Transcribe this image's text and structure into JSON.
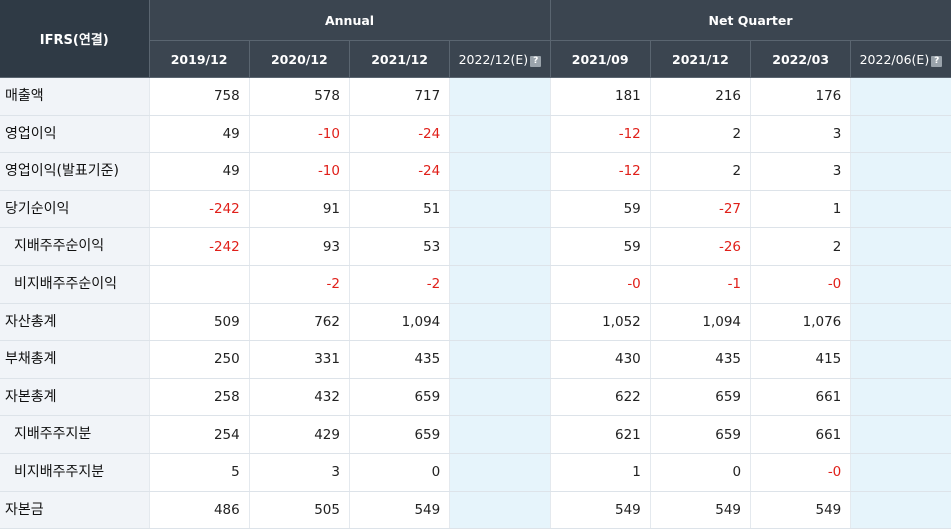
{
  "header": {
    "corner": "IFRS(연결)",
    "annual": "Annual",
    "quarter": "Net Quarter",
    "periods": [
      "2019/12",
      "2020/12",
      "2021/12",
      "2022/12(E)",
      "2021/09",
      "2021/12",
      "2022/03",
      "2022/06(E)"
    ],
    "estimate_icon": "?"
  },
  "rows": [
    {
      "label": "매출액",
      "values": [
        "758",
        "578",
        "717",
        "",
        "181",
        "216",
        "176",
        ""
      ]
    },
    {
      "label": "영업이익",
      "values": [
        "49",
        "-10",
        "-24",
        "",
        "-12",
        "2",
        "3",
        ""
      ]
    },
    {
      "label": "영업이익(발표기준)",
      "values": [
        "49",
        "-10",
        "-24",
        "",
        "-12",
        "2",
        "3",
        ""
      ]
    },
    {
      "label": "당기순이익",
      "values": [
        "-242",
        "91",
        "51",
        "",
        "59",
        "-27",
        "1",
        ""
      ]
    },
    {
      "label": "지배주주순이익",
      "values": [
        "-242",
        "93",
        "53",
        "",
        "59",
        "-26",
        "2",
        ""
      ]
    },
    {
      "label": "비지배주주순이익",
      "values": [
        "",
        "-2",
        "-2",
        "",
        "-0",
        "-1",
        "-0",
        ""
      ]
    },
    {
      "label": "자산총계",
      "values": [
        "509",
        "762",
        "1,094",
        "",
        "1,052",
        "1,094",
        "1,076",
        ""
      ]
    },
    {
      "label": "부채총계",
      "values": [
        "250",
        "331",
        "435",
        "",
        "430",
        "435",
        "415",
        ""
      ]
    },
    {
      "label": "자본총계",
      "values": [
        "258",
        "432",
        "659",
        "",
        "622",
        "659",
        "661",
        ""
      ]
    },
    {
      "label": "지배주주지분",
      "values": [
        "254",
        "429",
        "659",
        "",
        "621",
        "659",
        "661",
        ""
      ]
    },
    {
      "label": "비지배주주지분",
      "values": [
        "5",
        "3",
        "0",
        "",
        "1",
        "0",
        "-0",
        ""
      ]
    },
    {
      "label": "자본금",
      "values": [
        "486",
        "505",
        "549",
        "",
        "549",
        "549",
        "549",
        ""
      ]
    }
  ],
  "colors": {
    "header_bg": "#3b4550",
    "label_bg": "#f1f4f8",
    "estimate_bg": "#e6f4fb",
    "negative": "#e0201a"
  }
}
